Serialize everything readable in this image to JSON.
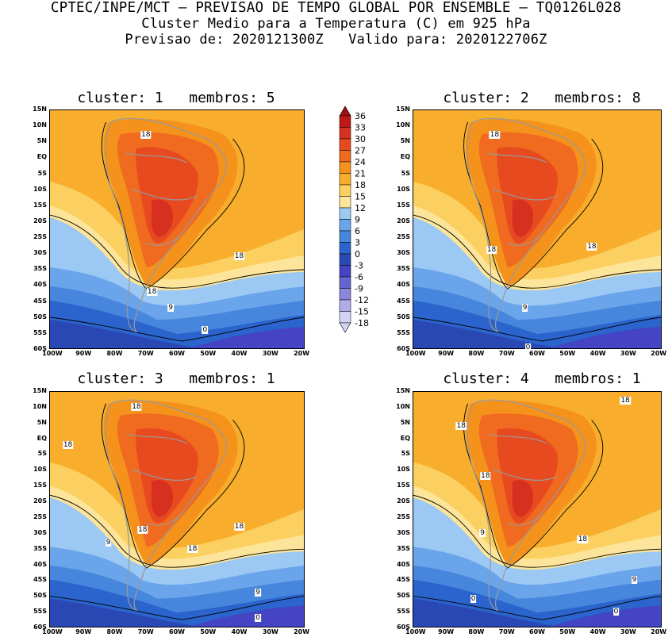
{
  "header": {
    "line1": "CPTEC/INPE/MCT — PREVISAO DE TEMPO GLOBAL POR ENSEMBLE — TQ0126L028",
    "line2": "Cluster Medio para a Temperatura (C) em 925 hPa",
    "line3": "Previsao de: 2020121300Z   Valido para: 2020122706Z"
  },
  "colors": {
    "c36": "#a01010",
    "c33": "#c01818",
    "c30": "#d83020",
    "c27": "#e84a20",
    "c24": "#f06a20",
    "c21": "#f4921c",
    "c18": "#f8ae2c",
    "c15": "#fbd060",
    "c12": "#fce59a",
    "c9": "#9cc8f4",
    "c6": "#6aa4ea",
    "c3": "#4686dc",
    "c0": "#2a64cc",
    "cm3": "#2a48b4",
    "cm6": "#4444c4",
    "cm9": "#6464d0",
    "cm12": "#8a86dc",
    "cm15": "#b0aee8",
    "cm18": "#d4d2f4",
    "land": "#999999"
  },
  "chart_data": {
    "type": "heatmap",
    "shared": {
      "lat_ticks": [
        "15N",
        "10N",
        "5N",
        "EQ",
        "5S",
        "10S",
        "15S",
        "20S",
        "25S",
        "30S",
        "35S",
        "40S",
        "45S",
        "50S",
        "55S",
        "60S"
      ],
      "lon_ticks": [
        "100W",
        "90W",
        "80W",
        "70W",
        "60W",
        "50W",
        "40W",
        "30W",
        "20W"
      ],
      "lat_range": [
        -60,
        15
      ],
      "lon_range": [
        -101,
        -19
      ],
      "colorbar_levels": [
        "36",
        "33",
        "30",
        "27",
        "24",
        "21",
        "18",
        "15",
        "12",
        "9",
        "6",
        "3",
        "0",
        "-3",
        "-6",
        "-9",
        "-12",
        "-15",
        "-18"
      ],
      "units": "C"
    },
    "panels": [
      {
        "title": "cluster: 1   membros: 5",
        "cluster": 1,
        "membros": 5,
        "contour_labels": [
          {
            "text": "18",
            "lon": -70,
            "lat": 7
          },
          {
            "text": "18",
            "lon": -40,
            "lat": -31
          },
          {
            "text": "18",
            "lon": -68,
            "lat": -42
          },
          {
            "text": "9",
            "lon": -62,
            "lat": -47
          },
          {
            "text": "0",
            "lon": -51,
            "lat": -54
          }
        ]
      },
      {
        "title": "cluster: 2   membros: 8",
        "cluster": 2,
        "membros": 8,
        "contour_labels": [
          {
            "text": "18",
            "lon": -74,
            "lat": 7
          },
          {
            "text": "18",
            "lon": -75,
            "lat": -29
          },
          {
            "text": "18",
            "lon": -42,
            "lat": -28
          },
          {
            "text": "9",
            "lon": -64,
            "lat": -47
          },
          {
            "text": "0",
            "lon": -63,
            "lat": -59.5
          }
        ]
      },
      {
        "title": "cluster: 3   membros: 1",
        "cluster": 3,
        "membros": 1,
        "contour_labels": [
          {
            "text": "18",
            "lon": -73,
            "lat": 10
          },
          {
            "text": "18",
            "lon": -95,
            "lat": -2
          },
          {
            "text": "18",
            "lon": -71,
            "lat": -29
          },
          {
            "text": "18",
            "lon": -55,
            "lat": -35
          },
          {
            "text": "18",
            "lon": -40,
            "lat": -28
          },
          {
            "text": "9",
            "lon": -82,
            "lat": -33
          },
          {
            "text": "9",
            "lon": -34,
            "lat": -49
          },
          {
            "text": "0",
            "lon": -34,
            "lat": -57
          }
        ]
      },
      {
        "title": "cluster: 4   membros: 1",
        "cluster": 4,
        "membros": 1,
        "contour_labels": [
          {
            "text": "18",
            "lon": -31,
            "lat": 12
          },
          {
            "text": "18",
            "lon": -85,
            "lat": 4
          },
          {
            "text": "18",
            "lon": -77,
            "lat": -12
          },
          {
            "text": "18",
            "lon": -45,
            "lat": -32
          },
          {
            "text": "9",
            "lon": -78,
            "lat": -30
          },
          {
            "text": "9",
            "lon": -28,
            "lat": -45
          },
          {
            "text": "0",
            "lon": -34,
            "lat": -55
          },
          {
            "text": "0",
            "lon": -81,
            "lat": -51
          }
        ]
      }
    ]
  }
}
